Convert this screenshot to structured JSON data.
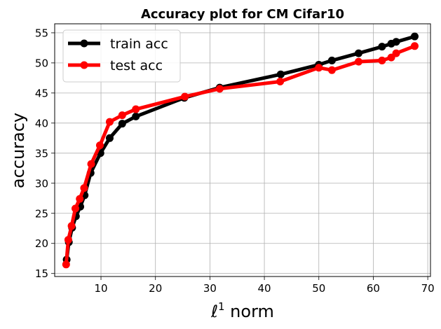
{
  "chart_data": {
    "type": "line",
    "title": "Accuracy plot for CM Cifar10",
    "xlabel_prefix": "ℓ",
    "xlabel_sup": "1",
    "xlabel_suffix": " norm",
    "ylabel": "accuracy",
    "xlim": [
      1.5,
      70.5
    ],
    "ylim": [
      14.5,
      56.5
    ],
    "xticks": [
      10,
      20,
      30,
      40,
      50,
      60,
      70
    ],
    "yticks": [
      15,
      20,
      25,
      30,
      35,
      40,
      45,
      50,
      55
    ],
    "grid": true,
    "legend_position": "top-left",
    "series": [
      {
        "name": "train acc",
        "color": "#000000",
        "points": [
          [
            3.7,
            17.3
          ],
          [
            4.1,
            20.2
          ],
          [
            4.7,
            22.6
          ],
          [
            5.4,
            24.5
          ],
          [
            6.2,
            26.1
          ],
          [
            7.0,
            28.0
          ],
          [
            8.1,
            31.7
          ],
          [
            9.9,
            35.0
          ],
          [
            11.6,
            37.5
          ],
          [
            13.9,
            39.9
          ],
          [
            16.4,
            41.1
          ],
          [
            25.3,
            44.2
          ],
          [
            31.8,
            45.9
          ],
          [
            43.0,
            48.1
          ],
          [
            50.0,
            49.7
          ],
          [
            52.4,
            50.4
          ],
          [
            57.3,
            51.6
          ],
          [
            61.6,
            52.7
          ],
          [
            63.3,
            53.2
          ],
          [
            64.2,
            53.5
          ],
          [
            67.6,
            54.4
          ]
        ]
      },
      {
        "name": "test acc",
        "color": "#ff0000",
        "points": [
          [
            3.6,
            16.5
          ],
          [
            4.0,
            20.6
          ],
          [
            4.6,
            22.9
          ],
          [
            5.3,
            25.8
          ],
          [
            6.1,
            27.4
          ],
          [
            6.9,
            29.2
          ],
          [
            8.2,
            33.2
          ],
          [
            9.8,
            36.3
          ],
          [
            11.6,
            40.2
          ],
          [
            13.9,
            41.3
          ],
          [
            16.4,
            42.3
          ],
          [
            25.4,
            44.4
          ],
          [
            31.8,
            45.7
          ],
          [
            42.9,
            46.9
          ],
          [
            50.0,
            49.2
          ],
          [
            52.4,
            48.8
          ],
          [
            57.3,
            50.2
          ],
          [
            61.6,
            50.4
          ],
          [
            63.3,
            50.9
          ],
          [
            64.2,
            51.6
          ],
          [
            67.6,
            52.8
          ]
        ]
      }
    ]
  }
}
